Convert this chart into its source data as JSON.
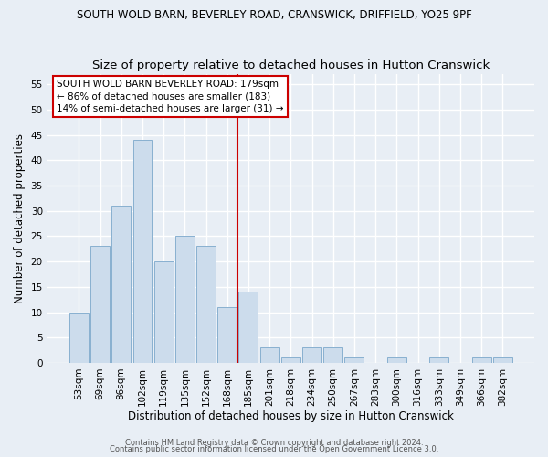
{
  "title": "SOUTH WOLD BARN, BEVERLEY ROAD, CRANSWICK, DRIFFIELD, YO25 9PF",
  "subtitle": "Size of property relative to detached houses in Hutton Cranswick",
  "xlabel": "Distribution of detached houses by size in Hutton Cranswick",
  "ylabel": "Number of detached properties",
  "bar_labels": [
    "53sqm",
    "69sqm",
    "86sqm",
    "102sqm",
    "119sqm",
    "135sqm",
    "152sqm",
    "168sqm",
    "185sqm",
    "201sqm",
    "218sqm",
    "234sqm",
    "250sqm",
    "267sqm",
    "283sqm",
    "300sqm",
    "316sqm",
    "333sqm",
    "349sqm",
    "366sqm",
    "382sqm"
  ],
  "bar_values": [
    10,
    23,
    31,
    44,
    20,
    25,
    23,
    11,
    14,
    3,
    1,
    3,
    3,
    1,
    0,
    1,
    0,
    1,
    0,
    1,
    1
  ],
  "bar_color": "#ccdcec",
  "bar_edgecolor": "#88b0d0",
  "vline_index": 8,
  "vline_color": "#cc0000",
  "annotation_box_text": "SOUTH WOLD BARN BEVERLEY ROAD: 179sqm\n← 86% of detached houses are smaller (183)\n14% of semi-detached houses are larger (31) →",
  "ylim": [
    0,
    57
  ],
  "yticks": [
    0,
    5,
    10,
    15,
    20,
    25,
    30,
    35,
    40,
    45,
    50,
    55
  ],
  "footer1": "Contains HM Land Registry data © Crown copyright and database right 2024.",
  "footer2": "Contains public sector information licensed under the Open Government Licence 3.0.",
  "background_color": "#e8eef5",
  "grid_color": "#ffffff",
  "title_fontsize": 8.5,
  "subtitle_fontsize": 9.5,
  "ylabel_fontsize": 8.5,
  "xlabel_fontsize": 8.5,
  "tick_fontsize": 7.5,
  "annotation_fontsize": 7.5,
  "footer_fontsize": 6.0
}
